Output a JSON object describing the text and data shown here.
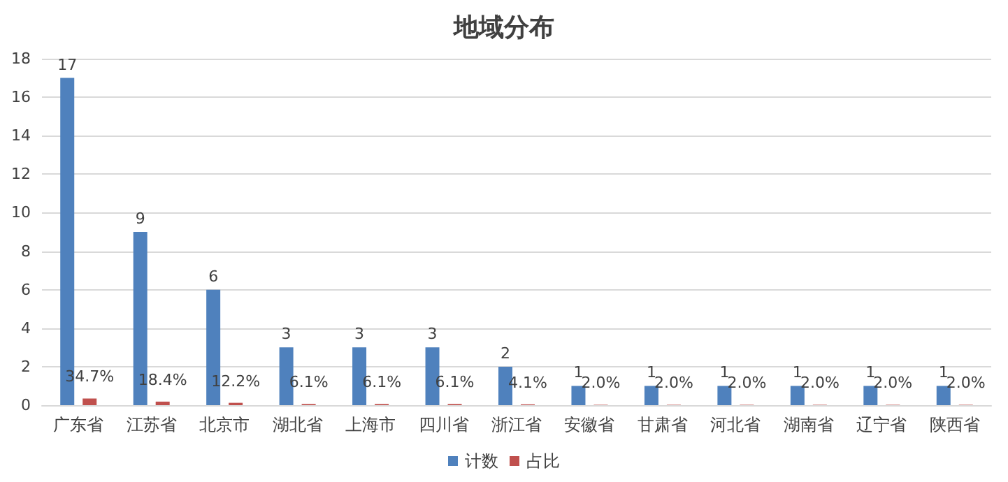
{
  "chart_data": {
    "type": "bar",
    "title": "地域分布",
    "categories": [
      "广东省",
      "江苏省",
      "北京市",
      "湖北省",
      "上海市",
      "四川省",
      "浙江省",
      "安徽省",
      "甘肃省",
      "河北省",
      "湖南省",
      "辽宁省",
      "陕西省"
    ],
    "series": [
      {
        "name": "计数",
        "color": "#4f81bd",
        "values": [
          17,
          9,
          6,
          3,
          3,
          3,
          2,
          1,
          1,
          1,
          1,
          1,
          1
        ],
        "value_labels": [
          "17",
          "9",
          "6",
          "3",
          "3",
          "3",
          "2",
          "1",
          "1",
          "1",
          "1",
          "1",
          "1"
        ]
      },
      {
        "name": "占比",
        "color": "#c0504d",
        "values": [
          0.347,
          0.184,
          0.122,
          0.061,
          0.061,
          0.061,
          0.041,
          0.02,
          0.02,
          0.02,
          0.02,
          0.02,
          0.02
        ],
        "value_labels": [
          "34.7%",
          "18.4%",
          "12.2%",
          "6.1%",
          "6.1%",
          "6.1%",
          "4.1%",
          "2.0%",
          "2.0%",
          "2.0%",
          "2.0%",
          "2.0%",
          "2.0%"
        ]
      }
    ],
    "ylim": [
      0,
      18
    ],
    "yticks": [
      0,
      2,
      4,
      6,
      8,
      10,
      12,
      14,
      16,
      18
    ],
    "grid": "y",
    "legend": "bottom"
  }
}
